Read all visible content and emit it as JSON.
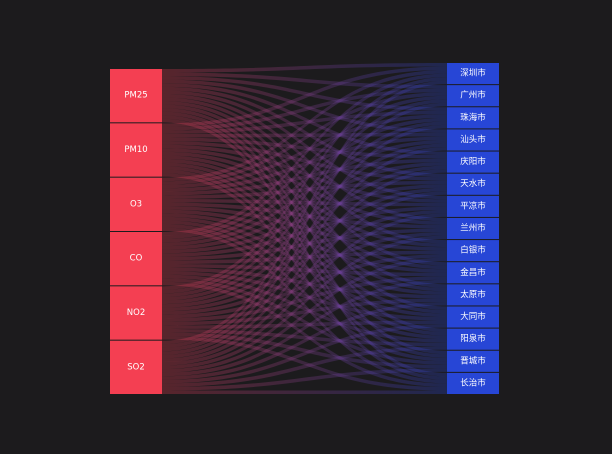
{
  "chart_data": {
    "type": "sankey",
    "title": "",
    "sources": [
      "PM25",
      "PM10",
      "O3",
      "CO",
      "NO2",
      "SO2"
    ],
    "targets": [
      "深圳市",
      "广州市",
      "珠海市",
      "汕头市",
      "庆阳市",
      "天水市",
      "平凉市",
      "兰州市",
      "白银市",
      "金昌市",
      "太原市",
      "大同市",
      "阳泉市",
      "晋城市",
      "长治市"
    ],
    "link_value": 1,
    "colors": {
      "background": "#1c1b1d",
      "source_node": "#f43f52",
      "target_node": "#2746d6",
      "label": "#ffffff"
    }
  }
}
